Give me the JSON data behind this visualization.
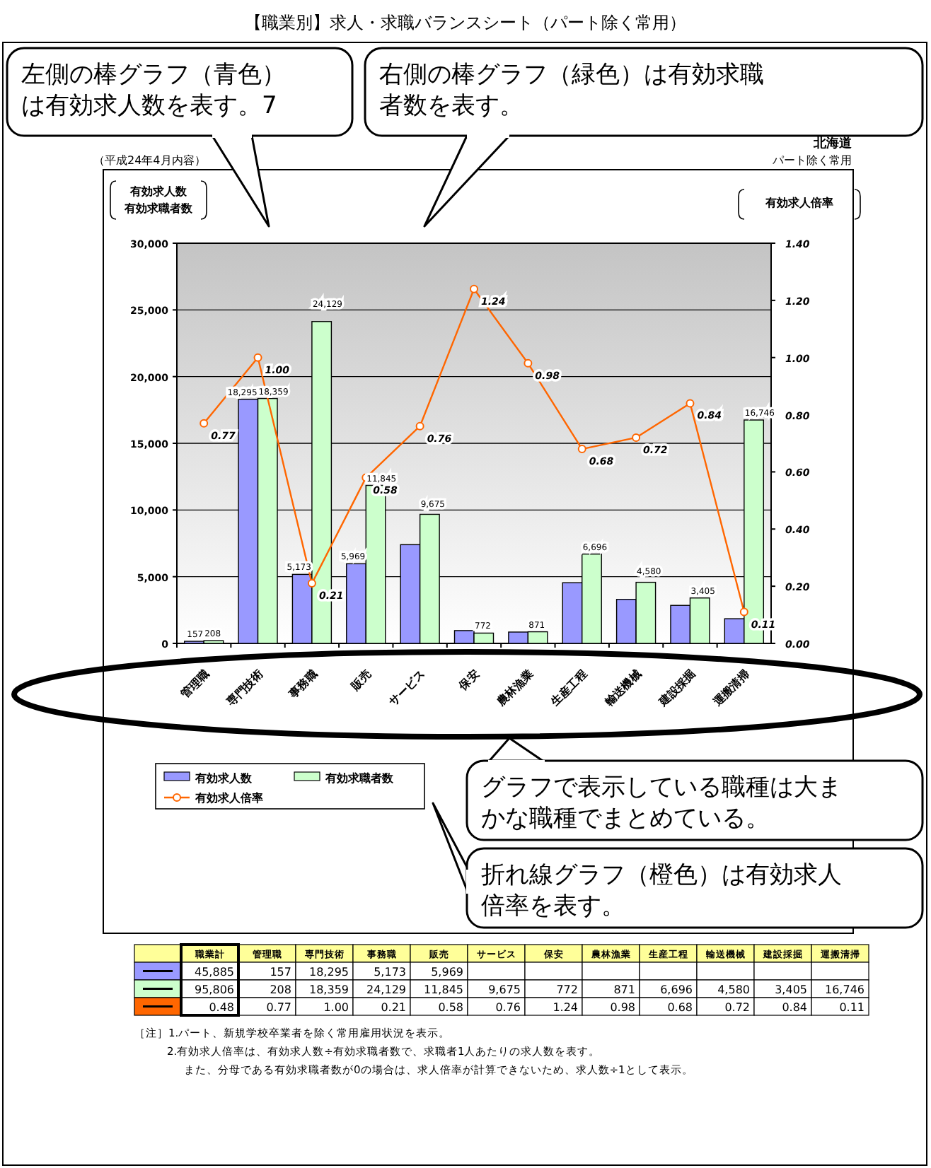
{
  "chart_data": {
    "type": "bar",
    "title": "【職業別】求人・求職バランスシート（パート除く常用）",
    "subtitle": "（平成24年4月内容）",
    "ylabel": "有効求人数有効求職者数",
    "y2label": "有効求人倍率",
    "categories": [
      "管理職",
      "専門技術",
      "事務職",
      "販売",
      "サービス",
      "保安",
      "農林漁業",
      "生産工程",
      "輸送機械",
      "建設採掘",
      "運搬清掃"
    ],
    "series": [
      {
        "name": "有効求人数",
        "color": "#9999ff",
        "values": [
          157,
          18295,
          5173,
          5969,
          7400,
          960,
          850,
          4550,
          3300,
          2850,
          1850
        ],
        "value_labels": [
          "157",
          "18,295",
          "5,173",
          "5,969",
          null,
          null,
          null,
          null,
          null,
          null,
          null
        ]
      },
      {
        "name": "有効求職者数",
        "color": "#ccffcc",
        "values": [
          208,
          18359,
          24129,
          11845,
          9675,
          772,
          871,
          6696,
          4580,
          3405,
          16746
        ],
        "value_labels": [
          "208",
          "18,359",
          "24,129",
          "11,845",
          "9,675",
          "772",
          "871",
          "6,696",
          "4,580",
          "3,405",
          "16,746"
        ]
      },
      {
        "name": "有効求人倍率",
        "type": "line",
        "axis": "y2",
        "color": "#ff6600",
        "marker": "circle",
        "values": [
          0.77,
          1.0,
          0.21,
          0.58,
          0.76,
          1.24,
          0.98,
          0.68,
          0.72,
          0.84,
          0.11
        ],
        "value_labels": [
          "0.77",
          "1.00",
          "0.21",
          "0.58",
          "0.76",
          "1.24",
          "0.98",
          "0.68",
          "0.72",
          "0.84",
          "0.11"
        ]
      }
    ],
    "ylim": [
      0,
      30000
    ],
    "yticks": [
      0,
      {
        "value": 5000,
        "label": "5,000"
      },
      {
        "value": 10000,
        "label": "10,000"
      },
      {
        "value": 15000,
        "label": "15,000"
      },
      {
        "value": 20000,
        "label": "20,000"
      },
      {
        "value": 25000,
        "label": "25,000"
      },
      {
        "value": 30000,
        "label": "30,000"
      }
    ],
    "y2lim": [
      0,
      1.4
    ],
    "y2ticks": [
      {
        "value": 0,
        "label": "0.00"
      },
      {
        "value": 0.2,
        "label": "0.20"
      },
      {
        "value": 0.4,
        "label": "0.40"
      },
      {
        "value": 0.6,
        "label": "0.60"
      },
      {
        "value": 0.8,
        "label": "0.80"
      },
      {
        "value": 1.0,
        "label": "1.00"
      },
      {
        "value": 1.2,
        "label": "1.20"
      },
      {
        "value": 1.4,
        "label": "1.40"
      }
    ],
    "grid": "y",
    "legend": "bottom",
    "annotations": [
      "北海道",
      "パート除く常用",
      "［注］1.パート、新規学校卒業者を除く常用雇用状況を表示。",
      "2.有効求人倍率は、有効求人数÷有効求職者数で、求職者1人あたりの求人数を表す。",
      "また、分母である有効求職者数が0の場合は、求人倍率が計算できないため、求人数÷1として表示。",
      "左側の棒グラフ（青色）は有効求人数を表す。7",
      "右側の棒グラフ（緑色）は有効求職者数を表す。",
      "折れ線グラフ（橙色）は有効求人倍率を表す。",
      "グラフで表示している職種は大まかな職種でまとめている。",
      "職業計",
      "45,885",
      "95,806",
      "0.48"
    ]
  }
}
